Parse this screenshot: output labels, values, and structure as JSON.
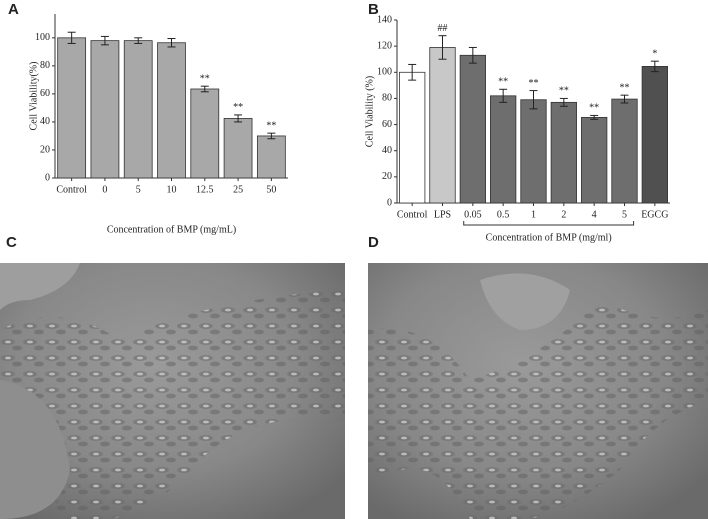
{
  "chart_data": [
    {
      "type": "bar",
      "label": "A",
      "y_label": "Cell Viability(%)",
      "x_label": "Concentration of BMP (mg/mL)",
      "categories": [
        "Control",
        "0",
        "5",
        "10",
        "12.5",
        "25",
        "50"
      ],
      "values": [
        100,
        98,
        98,
        96.5,
        63.5,
        42.5,
        30
      ],
      "errors": [
        4,
        3,
        2,
        3,
        2,
        2.5,
        2
      ],
      "annotations": [
        null,
        null,
        null,
        null,
        "**",
        "**",
        "**"
      ],
      "colors": [
        "#a8a8a8",
        "#a8a8a8",
        "#a8a8a8",
        "#a8a8a8",
        "#a8a8a8",
        "#a8a8a8",
        "#a8a8a8"
      ],
      "ylim": [
        0,
        117
      ],
      "yticks": [
        0,
        20,
        40,
        60,
        80,
        100
      ]
    },
    {
      "type": "bar",
      "label": "B",
      "y_label": "Cell Viability (%)",
      "x_label": "Concentration of BMP (mg/ml)",
      "categories": [
        "Control",
        "LPS",
        "0.05",
        "0.5",
        "1",
        "2",
        "4",
        "5",
        "EGCG"
      ],
      "values": [
        100,
        119,
        113,
        82,
        79,
        77,
        65.5,
        79.5,
        104.5
      ],
      "errors": [
        6,
        9,
        6,
        5,
        7,
        3,
        1.5,
        3,
        4
      ],
      "annotations": [
        null,
        "##",
        null,
        "**",
        "**",
        "**",
        "**",
        "**",
        "*"
      ],
      "colors": [
        "#ffffff",
        "#c8c8c8",
        "#6e6e6e",
        "#6e6e6e",
        "#6e6e6e",
        "#6e6e6e",
        "#6e6e6e",
        "#6e6e6e",
        "#505050"
      ],
      "ylim": [
        0,
        140
      ],
      "yticks": [
        0,
        20,
        40,
        60,
        80,
        100,
        120,
        140
      ]
    }
  ],
  "images": [
    {
      "label": "C"
    },
    {
      "label": "D"
    }
  ]
}
